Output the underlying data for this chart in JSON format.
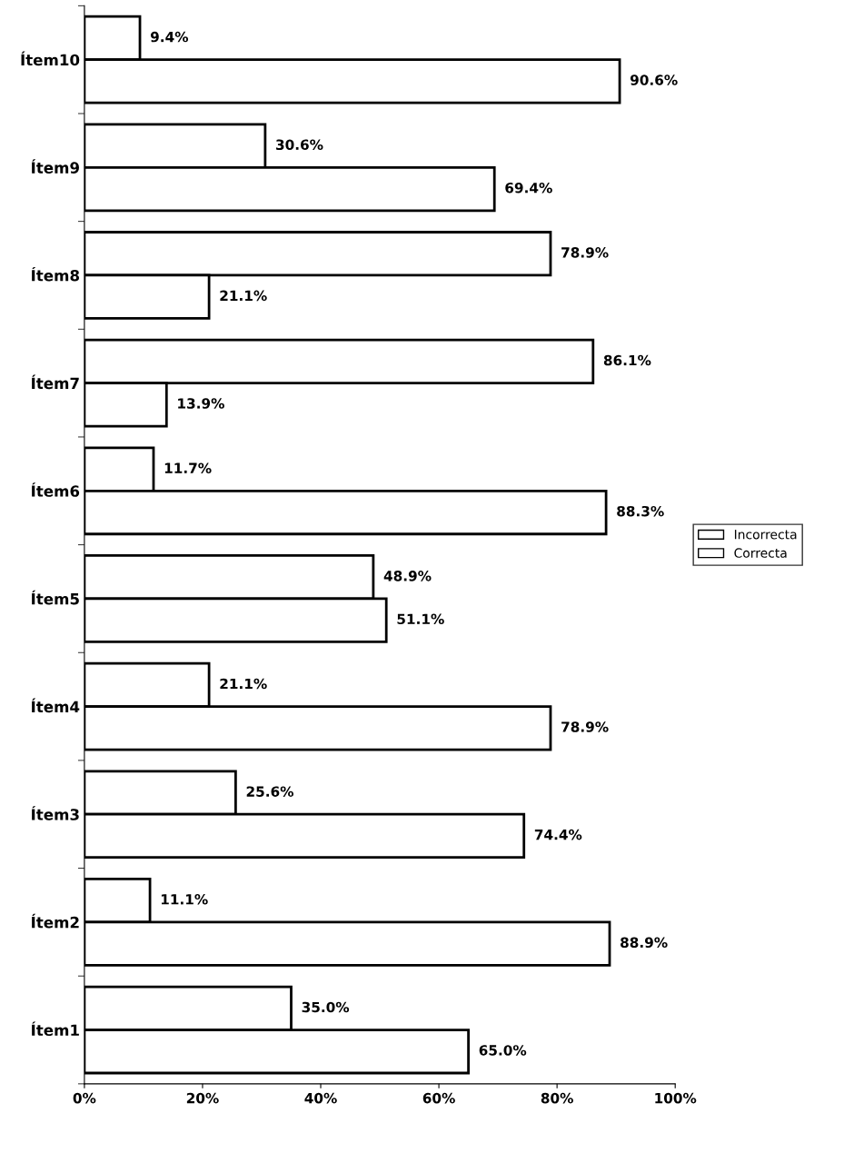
{
  "chart_data": {
    "type": "bar",
    "orientation": "horizontal",
    "categories": [
      "Ítem10",
      "Ítem9",
      "Ítem8",
      "Ítem7",
      "Ítem6",
      "Ítem5",
      "Ítem4",
      "Ítem3",
      "Ítem2",
      "Ítem1"
    ],
    "series": [
      {
        "name": "Incorrecta",
        "color": "#ffffff",
        "values": [
          9.4,
          30.6,
          78.9,
          86.1,
          11.7,
          48.9,
          21.1,
          25.6,
          11.1,
          35.0
        ],
        "value_labels": [
          "9.4%",
          "30.6%",
          "78.9%",
          "86.1%",
          "11.7%",
          "48.9%",
          "21.1%",
          "25.6%",
          "11.1%",
          "35.0%"
        ]
      },
      {
        "name": "Correcta",
        "color": "#ffffff",
        "values": [
          90.6,
          69.4,
          21.1,
          13.9,
          88.3,
          51.1,
          78.9,
          74.4,
          88.9,
          65.0
        ],
        "value_labels": [
          "90.6%",
          "69.4%",
          "21.1%",
          "13.9%",
          "88.3%",
          "51.1%",
          "78.9%",
          "74.4%",
          "88.9%",
          "65.0%"
        ]
      }
    ],
    "xlim": [
      0,
      100
    ],
    "xticks": [
      {
        "value": 0,
        "label": "0%"
      },
      {
        "value": 20,
        "label": "20%"
      },
      {
        "value": 40,
        "label": "40%"
      },
      {
        "value": 60,
        "label": "60%"
      },
      {
        "value": 80,
        "label": "80%"
      },
      {
        "value": 100,
        "label": "100%"
      }
    ],
    "grid": false,
    "legend": "right"
  }
}
